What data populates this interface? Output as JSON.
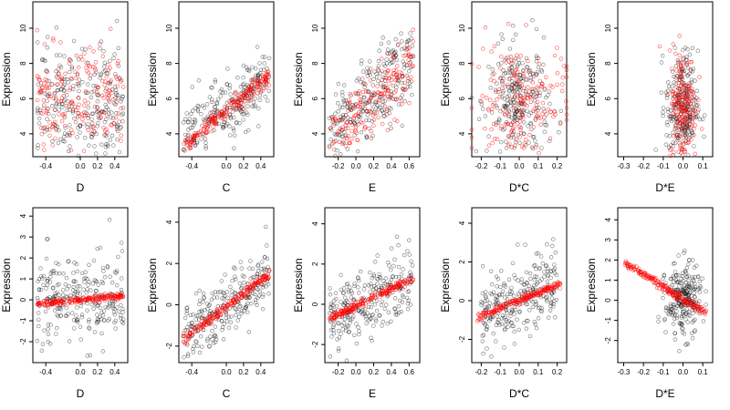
{
  "figure": {
    "layout": "2 rows x 5 columns scatter plots",
    "point_symbol": "open-circle",
    "colors": {
      "observed": "#000000",
      "fitted": "#ff0000",
      "frame": "#000000",
      "background": "#ffffff"
    }
  },
  "chart_data": [
    {
      "type": "scatter",
      "row": 1,
      "col": 1,
      "xlabel": "D",
      "ylabel": "Expression",
      "xlim": [
        -0.55,
        0.55
      ],
      "ylim": [
        2.7,
        11.5
      ],
      "xticks": [
        -0.4,
        0.0,
        0.2,
        0.4
      ],
      "xtick_labels": [
        "-0.4",
        "0.0",
        "0.2",
        "0.4"
      ],
      "yticks": [
        4,
        6,
        8,
        10
      ],
      "ytick_labels": [
        "4",
        "6",
        "8",
        "10"
      ],
      "series": [
        {
          "name": "observed",
          "color": "#000000",
          "pattern": "uniform",
          "x_range": [
            -0.5,
            0.5
          ],
          "y_center": 5.8,
          "y_spread": 1.6,
          "n": 260
        },
        {
          "name": "fitted",
          "color": "#ff0000",
          "pattern": "uniform",
          "x_range": [
            -0.5,
            0.5
          ],
          "y_center": 5.8,
          "y_spread": 1.5,
          "n": 200
        }
      ]
    },
    {
      "type": "scatter",
      "row": 1,
      "col": 2,
      "xlabel": "C",
      "ylabel": "Expression",
      "xlim": [
        -0.55,
        0.55
      ],
      "ylim": [
        2.7,
        11.5
      ],
      "xticks": [
        -0.4,
        0.0,
        0.2,
        0.4
      ],
      "xtick_labels": [
        "-0.4",
        "0.0",
        "0.2",
        "0.4"
      ],
      "yticks": [
        4,
        6,
        8,
        10
      ],
      "ytick_labels": [
        "4",
        "6",
        "8",
        "10"
      ],
      "series": [
        {
          "name": "observed",
          "color": "#000000",
          "pattern": "trend",
          "x_range": [
            -0.5,
            0.5
          ],
          "y_at_xmin": 3.5,
          "y_at_xmax": 7.3,
          "y_spread": 0.9,
          "n": 260
        },
        {
          "name": "fitted",
          "color": "#ff0000",
          "pattern": "trend",
          "x_range": [
            -0.5,
            0.5
          ],
          "y_at_xmin": 3.3,
          "y_at_xmax": 7.3,
          "y_spread": 0.25,
          "n": 200
        }
      ]
    },
    {
      "type": "scatter",
      "row": 1,
      "col": 3,
      "xlabel": "E",
      "ylabel": "Expression",
      "xlim": [
        -0.35,
        0.72
      ],
      "ylim": [
        2.7,
        11.5
      ],
      "xticks": [
        -0.2,
        0.0,
        0.2,
        0.4,
        0.6
      ],
      "xtick_labels": [
        "-0.2",
        "0.0",
        "0.2",
        "0.4",
        "0.6"
      ],
      "yticks": [
        4,
        6,
        8,
        10
      ],
      "ytick_labels": [
        "4",
        "6",
        "8",
        "10"
      ],
      "series": [
        {
          "name": "observed",
          "color": "#000000",
          "pattern": "trend",
          "x_range": [
            -0.3,
            0.65
          ],
          "y_at_xmin": 3.8,
          "y_at_xmax": 8.2,
          "y_spread": 1.2,
          "n": 260
        },
        {
          "name": "fitted",
          "color": "#ff0000",
          "pattern": "trend",
          "x_range": [
            -0.3,
            0.65
          ],
          "y_at_xmin": 3.3,
          "y_at_xmax": 8.0,
          "y_spread": 0.9,
          "n": 200
        }
      ]
    },
    {
      "type": "scatter",
      "row": 1,
      "col": 4,
      "xlabel": "D*C",
      "ylabel": "Expression",
      "xlim": [
        -0.25,
        0.25
      ],
      "ylim": [
        2.7,
        11.5
      ],
      "xticks": [
        -0.2,
        -0.1,
        0.0,
        0.1,
        0.2
      ],
      "xtick_labels": [
        "-0.2",
        "-0.1",
        "0.0",
        "0.1",
        "0.2"
      ],
      "yticks": [
        4,
        6,
        8,
        10
      ],
      "ytick_labels": [
        "4",
        "6",
        "8",
        "10"
      ],
      "series": [
        {
          "name": "observed",
          "color": "#000000",
          "pattern": "cluster",
          "x_center": 0.0,
          "x_spread": 0.08,
          "y_center": 5.8,
          "y_spread": 1.6,
          "n": 260
        },
        {
          "name": "fitted",
          "color": "#ff0000",
          "pattern": "cluster",
          "x_center": 0.0,
          "x_spread": 0.12,
          "y_center": 5.8,
          "y_spread": 1.7,
          "n": 200
        }
      ]
    },
    {
      "type": "scatter",
      "row": 1,
      "col": 5,
      "xlabel": "D*E",
      "ylabel": "Expression",
      "xlim": [
        -0.33,
        0.15
      ],
      "ylim": [
        2.7,
        11.5
      ],
      "xticks": [
        -0.3,
        -0.2,
        -0.1,
        0.0,
        0.1
      ],
      "xtick_labels": [
        "-0.3",
        "-0.2",
        "-0.1",
        "0.0",
        "0.1"
      ],
      "yticks": [
        4,
        6,
        8,
        10
      ],
      "ytick_labels": [
        "4",
        "6",
        "8",
        "10"
      ],
      "series": [
        {
          "name": "observed",
          "color": "#000000",
          "pattern": "cluster",
          "x_center": -0.005,
          "x_spread": 0.04,
          "y_center": 5.5,
          "y_spread": 1.6,
          "n": 260
        },
        {
          "name": "fitted",
          "color": "#ff0000",
          "pattern": "cluster",
          "x_center": 0.0,
          "x_spread": 0.035,
          "y_center": 5.6,
          "y_spread": 1.6,
          "n": 200
        }
      ]
    },
    {
      "type": "scatter",
      "row": 2,
      "col": 1,
      "xlabel": "D",
      "ylabel": "Expression",
      "xlim": [
        -0.55,
        0.55
      ],
      "ylim": [
        -3.0,
        4.4
      ],
      "xticks": [
        -0.4,
        0.0,
        0.2,
        0.4
      ],
      "xtick_labels": [
        "-0.4",
        "0.0",
        "0.2",
        "0.4"
      ],
      "yticks": [
        -2,
        -1,
        0,
        1,
        2,
        3,
        4
      ],
      "ytick_labels": [
        "-2",
        "-1",
        "0",
        "1",
        "2",
        "3",
        "4"
      ],
      "series": [
        {
          "name": "observed",
          "color": "#000000",
          "pattern": "uniform",
          "x_range": [
            -0.5,
            0.5
          ],
          "y_center": 0.0,
          "y_spread": 1.0,
          "n": 260
        },
        {
          "name": "fitted",
          "color": "#ff0000",
          "pattern": "trend",
          "x_range": [
            -0.5,
            0.5
          ],
          "y_at_xmin": -0.2,
          "y_at_xmax": 0.2,
          "y_spread": 0.07,
          "n": 200
        }
      ]
    },
    {
      "type": "scatter",
      "row": 2,
      "col": 2,
      "xlabel": "C",
      "ylabel": "Expression",
      "xlim": [
        -0.55,
        0.55
      ],
      "ylim": [
        -2.8,
        4.7
      ],
      "xticks": [
        -0.4,
        0.0,
        0.2,
        0.4
      ],
      "xtick_labels": [
        "-0.4",
        "0.0",
        "0.2",
        "0.4"
      ],
      "yticks": [
        -2,
        0,
        2,
        4
      ],
      "ytick_labels": [
        "-2",
        "0",
        "2",
        "4"
      ],
      "series": [
        {
          "name": "observed",
          "color": "#000000",
          "pattern": "trend",
          "x_range": [
            -0.5,
            0.5
          ],
          "y_at_xmin": -1.6,
          "y_at_xmax": 1.6,
          "y_spread": 0.7,
          "n": 260
        },
        {
          "name": "fitted",
          "color": "#ff0000",
          "pattern": "trend",
          "x_range": [
            -0.5,
            0.5
          ],
          "y_at_xmin": -1.7,
          "y_at_xmax": 1.5,
          "y_spread": 0.12,
          "n": 200
        }
      ]
    },
    {
      "type": "scatter",
      "row": 2,
      "col": 3,
      "xlabel": "E",
      "ylabel": "Expression",
      "xlim": [
        -0.35,
        0.72
      ],
      "ylim": [
        -2.9,
        4.8
      ],
      "xticks": [
        -0.2,
        0.0,
        0.2,
        0.4,
        0.6
      ],
      "xtick_labels": [
        "-0.2",
        "0.0",
        "0.2",
        "0.4",
        "0.6"
      ],
      "yticks": [
        -2,
        0,
        2,
        4
      ],
      "ytick_labels": [
        "-2",
        "0",
        "2",
        "4"
      ],
      "series": [
        {
          "name": "observed",
          "color": "#000000",
          "pattern": "trend",
          "x_range": [
            -0.3,
            0.65
          ],
          "y_at_xmin": -0.6,
          "y_at_xmax": 1.2,
          "y_spread": 0.9,
          "n": 260
        },
        {
          "name": "fitted",
          "color": "#ff0000",
          "pattern": "trend",
          "x_range": [
            -0.3,
            0.65
          ],
          "y_at_xmin": -0.7,
          "y_at_xmax": 1.3,
          "y_spread": 0.1,
          "n": 200
        }
      ]
    },
    {
      "type": "scatter",
      "row": 2,
      "col": 4,
      "xlabel": "D*C",
      "ylabel": "Expression",
      "xlim": [
        -0.25,
        0.25
      ],
      "ylim": [
        -3.2,
        4.8
      ],
      "xticks": [
        -0.2,
        -0.1,
        0.0,
        0.1,
        0.2
      ],
      "xtick_labels": [
        "-0.2",
        "-0.1",
        "0.0",
        "0.1",
        "0.2"
      ],
      "yticks": [
        -2,
        0,
        2,
        4
      ],
      "ytick_labels": [
        "-2",
        "0",
        "2",
        "4"
      ],
      "series": [
        {
          "name": "observed",
          "color": "#000000",
          "pattern": "trend",
          "x_range": [
            -0.2,
            0.2
          ],
          "y_at_xmin": -0.7,
          "y_at_xmax": 0.8,
          "y_spread": 0.9,
          "n": 260
        },
        {
          "name": "fitted",
          "color": "#ff0000",
          "pattern": "trend",
          "x_range": [
            -0.22,
            0.22
          ],
          "y_at_xmin": -0.85,
          "y_at_xmax": 0.85,
          "y_spread": 0.08,
          "n": 200
        }
      ]
    },
    {
      "type": "scatter",
      "row": 2,
      "col": 5,
      "xlabel": "D*E",
      "ylabel": "Expression",
      "xlim": [
        -0.33,
        0.15
      ],
      "ylim": [
        -3.1,
        4.6
      ],
      "xticks": [
        -0.3,
        -0.2,
        -0.1,
        0.0,
        0.1
      ],
      "xtick_labels": [
        "-0.3",
        "-0.2",
        "-0.1",
        "0.0",
        "0.1"
      ],
      "yticks": [
        -2,
        -1,
        0,
        1,
        2,
        3,
        4
      ],
      "ytick_labels": [
        "-2",
        "-1",
        "0",
        "1",
        "2",
        "3",
        "4"
      ],
      "series": [
        {
          "name": "observed",
          "color": "#000000",
          "pattern": "cluster",
          "x_center": 0.0,
          "x_spread": 0.045,
          "y_center": 0.0,
          "y_spread": 0.9,
          "n": 260
        },
        {
          "name": "fitted",
          "color": "#ff0000",
          "pattern": "trend",
          "x_range": [
            -0.3,
            0.12
          ],
          "y_at_xmin": 1.9,
          "y_at_xmax": -0.65,
          "y_spread": 0.1,
          "n": 200
        }
      ]
    }
  ]
}
